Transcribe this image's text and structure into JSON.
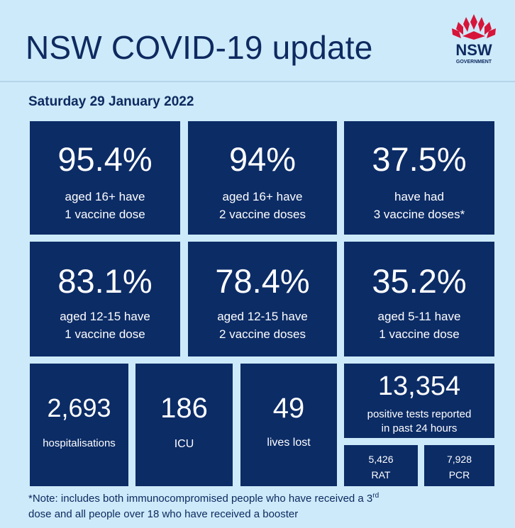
{
  "header": {
    "title": "NSW COVID-19 update",
    "date": "Saturday 29 January 2022"
  },
  "logo": {
    "word": "NSW",
    "sub": "GOVERNMENT",
    "petal_color": "#d7153a"
  },
  "colors": {
    "background": "#cdeafa",
    "tile": "#0c2c66",
    "text_dark": "#0e2a60"
  },
  "vaccination": [
    {
      "value": "95.4%",
      "line1": "aged 16+ have",
      "line2": "1 vaccine dose"
    },
    {
      "value": "94%",
      "line1": "aged 16+ have",
      "line2": "2 vaccine doses"
    },
    {
      "value": "37.5%",
      "line1": "have had",
      "line2": "3 vaccine doses*"
    },
    {
      "value": "83.1%",
      "line1": "aged 12-15 have",
      "line2": "1 vaccine dose"
    },
    {
      "value": "78.4%",
      "line1": "aged 12-15 have",
      "line2": "2 vaccine doses"
    },
    {
      "value": "35.2%",
      "line1": "aged 5-11 have",
      "line2": "1 vaccine dose"
    }
  ],
  "stats": [
    {
      "value": "2,693",
      "label": "hospitalisations"
    },
    {
      "value": "186",
      "label": "ICU"
    },
    {
      "value": "49",
      "label": "lives lost"
    }
  ],
  "tests": {
    "value": "13,354",
    "line1": "positive tests reported",
    "line2": "in past 24 hours",
    "rat": {
      "value": "5,426",
      "label": "RAT"
    },
    "pcr": {
      "value": "7,928",
      "label": "PCR"
    }
  },
  "note": {
    "part1": "*Note: includes both immunocompromised  people who have received a 3",
    "sup": "rd",
    "part2": "dose and all people over 18 who have received a booster"
  }
}
